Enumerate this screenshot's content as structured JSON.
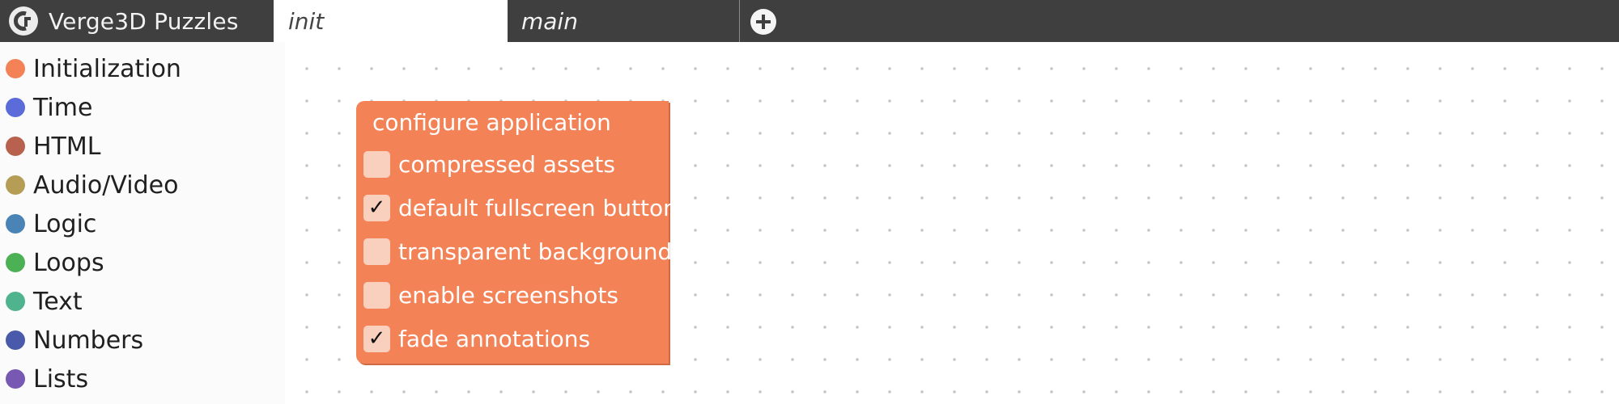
{
  "app": {
    "title": "Verge3D Puzzles",
    "logo_icon": "verge3d-logo-icon"
  },
  "tabs": [
    {
      "label": "init",
      "active": true
    },
    {
      "label": "main",
      "active": false
    }
  ],
  "add_tab_icon": "plus-circle-icon",
  "sidebar": {
    "categories": [
      {
        "label": "Initialization",
        "color": "#f38257"
      },
      {
        "label": "Time",
        "color": "#5b6bd9"
      },
      {
        "label": "HTML",
        "color": "#b8614f"
      },
      {
        "label": "Audio/Video",
        "color": "#b59d55"
      },
      {
        "label": "Logic",
        "color": "#4a83b5"
      },
      {
        "label": "Loops",
        "color": "#4cb155"
      },
      {
        "label": "Text",
        "color": "#4fb38d"
      },
      {
        "label": "Numbers",
        "color": "#4a5aab"
      },
      {
        "label": "Lists",
        "color": "#7758b3"
      }
    ]
  },
  "block": {
    "title": "configure application",
    "color": "#f38257",
    "options": [
      {
        "label": "compressed assets",
        "checked": false,
        "mark": ""
      },
      {
        "label": "default fullscreen button",
        "checked": true,
        "mark": "✓"
      },
      {
        "label": "transparent background",
        "checked": false,
        "mark": ""
      },
      {
        "label": "enable screenshots",
        "checked": false,
        "mark": ""
      },
      {
        "label": "fade annotations",
        "checked": true,
        "mark": "✓"
      }
    ]
  }
}
